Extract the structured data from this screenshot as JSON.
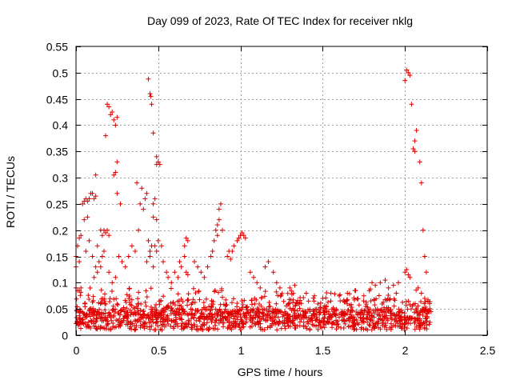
{
  "chart_data": {
    "type": "scatter",
    "title": "Day 099 of 2023, Rate Of TEC Index for receiver nklg",
    "xlabel": "GPS time / hours",
    "ylabel": "ROTI / TECUs",
    "xlim": [
      0,
      2.5
    ],
    "ylim": [
      0,
      0.55
    ],
    "xticks": [
      0,
      0.5,
      1,
      1.5,
      2,
      2.5
    ],
    "xtick_labels": [
      "0",
      "0.5",
      "1",
      "1.5",
      "2",
      "2.5"
    ],
    "yticks": [
      0,
      0.05,
      0.1,
      0.15,
      0.2,
      0.25,
      0.3,
      0.35,
      0.4,
      0.45,
      0.5,
      0.55
    ],
    "ytick_labels": [
      "0",
      "0.05",
      "0.1",
      "0.15",
      "0.2",
      "0.25",
      "0.3",
      "0.35",
      "0.4",
      "0.45",
      "0.5",
      "0.55"
    ],
    "grid": true,
    "marker": "+",
    "color": "#e00000",
    "series": [
      {
        "name": "ROTI",
        "points": [
          [
            0.19,
            0.44
          ],
          [
            0.2,
            0.435
          ],
          [
            0.21,
            0.42
          ],
          [
            0.22,
            0.425
          ],
          [
            0.23,
            0.41
          ],
          [
            0.24,
            0.4
          ],
          [
            0.25,
            0.415
          ],
          [
            0.18,
            0.38
          ],
          [
            0.25,
            0.33
          ],
          [
            0.24,
            0.31
          ],
          [
            0.23,
            0.305
          ],
          [
            0.25,
            0.27
          ],
          [
            0.27,
            0.25
          ],
          [
            0.44,
            0.488
          ],
          [
            0.45,
            0.46
          ],
          [
            0.455,
            0.455
          ],
          [
            0.46,
            0.44
          ],
          [
            0.47,
            0.385
          ],
          [
            0.49,
            0.34
          ],
          [
            0.5,
            0.33
          ],
          [
            0.49,
            0.325
          ],
          [
            0.51,
            0.325
          ],
          [
            0.48,
            0.26
          ],
          [
            0.47,
            0.25
          ],
          [
            0.47,
            0.225
          ],
          [
            0.49,
            0.22
          ],
          [
            0.4,
            0.28
          ],
          [
            0.42,
            0.26
          ],
          [
            0.43,
            0.27
          ],
          [
            0.41,
            0.24
          ],
          [
            0.39,
            0.25
          ],
          [
            0.37,
            0.29
          ],
          [
            0.12,
            0.305
          ],
          [
            0.1,
            0.27
          ],
          [
            0.11,
            0.26
          ],
          [
            0.12,
            0.265
          ],
          [
            0.08,
            0.26
          ],
          [
            0.09,
            0.27
          ],
          [
            0.05,
            0.255
          ],
          [
            0.06,
            0.26
          ],
          [
            0.04,
            0.25
          ],
          [
            0.07,
            0.255
          ],
          [
            0.05,
            0.22
          ],
          [
            0.07,
            0.225
          ],
          [
            0.02,
            0.185
          ],
          [
            0.03,
            0.19
          ],
          [
            0.01,
            0.17
          ],
          [
            0.0,
            0.15
          ],
          [
            0.02,
            0.14
          ],
          [
            0.0,
            0.13
          ],
          [
            0.0,
            0.09
          ],
          [
            0.01,
            0.085
          ],
          [
            0.02,
            0.085
          ],
          [
            0.03,
            0.09
          ],
          [
            0.06,
            0.16
          ],
          [
            0.08,
            0.18
          ],
          [
            0.1,
            0.15
          ],
          [
            0.12,
            0.13
          ],
          [
            0.13,
            0.12
          ],
          [
            0.11,
            0.11
          ],
          [
            0.15,
            0.2
          ],
          [
            0.16,
            0.19
          ],
          [
            0.17,
            0.2
          ],
          [
            0.18,
            0.195
          ],
          [
            0.19,
            0.2
          ],
          [
            0.2,
            0.19
          ],
          [
            0.14,
            0.14
          ],
          [
            0.15,
            0.13
          ],
          [
            0.16,
            0.15
          ],
          [
            0.17,
            0.16
          ],
          [
            0.13,
            0.17
          ],
          [
            0.2,
            0.12
          ],
          [
            0.22,
            0.1
          ],
          [
            0.24,
            0.11
          ],
          [
            0.26,
            0.15
          ],
          [
            0.28,
            0.14
          ],
          [
            0.3,
            0.13
          ],
          [
            0.32,
            0.15
          ],
          [
            0.34,
            0.17
          ],
          [
            0.36,
            0.16
          ],
          [
            0.38,
            0.2
          ],
          [
            0.44,
            0.18
          ],
          [
            0.45,
            0.16
          ],
          [
            0.46,
            0.17
          ],
          [
            0.48,
            0.17
          ],
          [
            0.5,
            0.18
          ],
          [
            0.52,
            0.17
          ],
          [
            0.43,
            0.14
          ],
          [
            0.45,
            0.15
          ],
          [
            0.47,
            0.13
          ],
          [
            0.49,
            0.16
          ],
          [
            0.53,
            0.14
          ],
          [
            0.55,
            0.12
          ],
          [
            0.56,
            0.11
          ],
          [
            0.58,
            0.1
          ],
          [
            0.6,
            0.12
          ],
          [
            0.62,
            0.11
          ],
          [
            0.63,
            0.14
          ],
          [
            0.64,
            0.13
          ],
          [
            0.66,
            0.15
          ],
          [
            0.67,
            0.12
          ],
          [
            0.68,
            0.115
          ],
          [
            0.67,
            0.185
          ],
          [
            0.68,
            0.18
          ],
          [
            0.66,
            0.17
          ],
          [
            0.72,
            0.14
          ],
          [
            0.74,
            0.13
          ],
          [
            0.76,
            0.12
          ],
          [
            0.78,
            0.11
          ],
          [
            0.8,
            0.13
          ],
          [
            0.82,
            0.15
          ],
          [
            0.83,
            0.16
          ],
          [
            0.84,
            0.18
          ],
          [
            0.85,
            0.2
          ],
          [
            0.86,
            0.21
          ],
          [
            0.87,
            0.22
          ],
          [
            0.88,
            0.25
          ],
          [
            0.87,
            0.24
          ],
          [
            0.89,
            0.2
          ],
          [
            0.86,
            0.19
          ],
          [
            0.92,
            0.15
          ],
          [
            0.93,
            0.16
          ],
          [
            0.94,
            0.145
          ],
          [
            0.95,
            0.16
          ],
          [
            0.96,
            0.17
          ],
          [
            0.98,
            0.18
          ],
          [
            0.99,
            0.185
          ],
          [
            1.0,
            0.19
          ],
          [
            1.01,
            0.195
          ],
          [
            1.02,
            0.19
          ],
          [
            1.03,
            0.185
          ],
          [
            1.06,
            0.12
          ],
          [
            1.08,
            0.11
          ],
          [
            1.1,
            0.1
          ],
          [
            1.12,
            0.09
          ],
          [
            1.15,
            0.13
          ],
          [
            1.17,
            0.14
          ],
          [
            1.2,
            0.12
          ],
          [
            1.22,
            0.1
          ],
          [
            1.24,
            0.09
          ],
          [
            1.3,
            0.09
          ],
          [
            1.33,
            0.095
          ],
          [
            1.4,
            0.08
          ],
          [
            1.45,
            0.075
          ],
          [
            1.5,
            0.07
          ],
          [
            1.55,
            0.08
          ],
          [
            1.6,
            0.075
          ],
          [
            1.65,
            0.08
          ],
          [
            1.7,
            0.085
          ],
          [
            1.75,
            0.075
          ],
          [
            1.8,
            0.1
          ],
          [
            1.82,
            0.095
          ],
          [
            1.85,
            0.1
          ],
          [
            1.88,
            0.105
          ],
          [
            1.9,
            0.09
          ],
          [
            1.93,
            0.095
          ],
          [
            1.96,
            0.1
          ],
          [
            2.01,
            0.505
          ],
          [
            2.02,
            0.5
          ],
          [
            2.03,
            0.495
          ],
          [
            2.0,
            0.485
          ],
          [
            2.04,
            0.44
          ],
          [
            2.07,
            0.39
          ],
          [
            2.06,
            0.37
          ],
          [
            2.05,
            0.355
          ],
          [
            2.06,
            0.35
          ],
          [
            2.09,
            0.33
          ],
          [
            2.1,
            0.29
          ],
          [
            2.11,
            0.2
          ],
          [
            2.12,
            0.15
          ],
          [
            2.13,
            0.12
          ],
          [
            2.0,
            0.12
          ],
          [
            2.01,
            0.125
          ],
          [
            2.02,
            0.115
          ],
          [
            2.03,
            0.11
          ],
          [
            2.08,
            0.09
          ],
          [
            2.1,
            0.08
          ],
          [
            2.12,
            0.07
          ],
          [
            2.14,
            0.065
          ],
          [
            2.15,
            0.06
          ]
        ]
      }
    ]
  }
}
